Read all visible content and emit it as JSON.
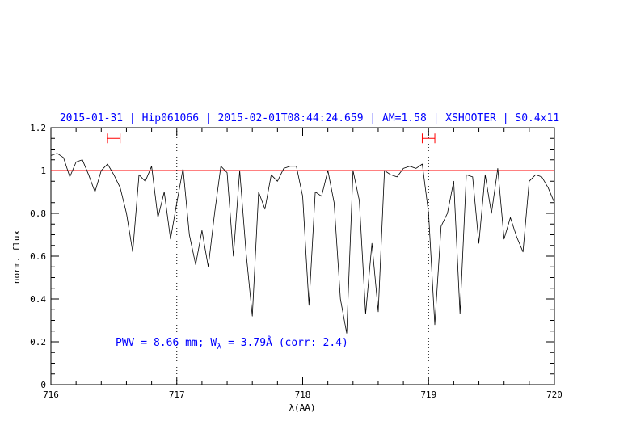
{
  "chart_data": {
    "type": "line",
    "title": "2015-01-31 | Hip061066 | 2015-02-01T08:44:24.659 | AM=1.58 | XSHOOTER | S0.4x11",
    "xlabel": "λ(AA)",
    "ylabel": "norm. flux",
    "xlim": [
      716,
      720
    ],
    "ylim": [
      0,
      1.2
    ],
    "x_ticks": [
      "716",
      "717",
      "718",
      "719",
      "720"
    ],
    "y_ticks": [
      "0",
      "0.2",
      "0.4",
      "0.6",
      "0.8",
      "1",
      "1.2"
    ],
    "annotation": {
      "prefix": "PWV = 8.66 mm; W",
      "subscript": "λ",
      "suffix": " = 3.79Å (corr: 2.4)"
    },
    "reference_line": {
      "y": 1.0,
      "color": "#ff0000"
    },
    "vertical_markers": [
      717.0,
      719.0
    ],
    "interval_markers": [
      {
        "x_start": 716.45,
        "x_end": 716.55,
        "y": 1.15
      },
      {
        "x_start": 718.95,
        "x_end": 719.05,
        "y": 1.15
      }
    ],
    "series": [
      {
        "color": "#000000",
        "x": [
          716.0,
          716.05,
          716.1,
          716.15,
          716.2,
          716.25,
          716.3,
          716.35,
          716.4,
          716.45,
          716.5,
          716.55,
          716.6,
          716.65,
          716.7,
          716.75,
          716.8,
          716.85,
          716.9,
          716.95,
          717.0,
          717.05,
          717.1,
          717.15,
          717.2,
          717.25,
          717.3,
          717.35,
          717.4,
          717.45,
          717.5,
          717.55,
          717.6,
          717.65,
          717.7,
          717.75,
          717.8,
          717.85,
          717.9,
          717.95,
          718.0,
          718.05,
          718.1,
          718.15,
          718.2,
          718.25,
          718.3,
          718.35,
          718.4,
          718.45,
          718.5,
          718.55,
          718.6,
          718.65,
          718.7,
          718.75,
          718.8,
          718.85,
          718.9,
          718.95,
          719.0,
          719.05,
          719.1,
          719.15,
          719.2,
          719.25,
          719.3,
          719.35,
          719.4,
          719.45,
          719.5,
          719.55,
          719.6,
          719.65,
          719.7,
          719.75,
          719.8,
          719.85,
          719.9,
          719.95,
          720.0
        ],
        "y": [
          1.07,
          1.08,
          1.06,
          0.97,
          1.04,
          1.05,
          0.98,
          0.9,
          1.0,
          1.03,
          0.98,
          0.92,
          0.8,
          0.62,
          0.98,
          0.95,
          1.02,
          0.78,
          0.9,
          0.68,
          0.85,
          1.01,
          0.7,
          0.56,
          0.72,
          0.55,
          0.8,
          1.02,
          0.99,
          0.6,
          1.0,
          0.62,
          0.32,
          0.9,
          0.82,
          0.98,
          0.95,
          1.01,
          1.02,
          1.02,
          0.88,
          0.37,
          0.9,
          0.88,
          1.0,
          0.85,
          0.4,
          0.24,
          1.0,
          0.86,
          0.33,
          0.66,
          0.34,
          1.0,
          0.98,
          0.97,
          1.01,
          1.02,
          1.01,
          1.03,
          0.8,
          0.28,
          0.74,
          0.8,
          0.95,
          0.33,
          0.98,
          0.97,
          0.66,
          0.98,
          0.8,
          1.01,
          0.68,
          0.78,
          0.69,
          0.62,
          0.95,
          0.98,
          0.97,
          0.92,
          0.85
        ]
      }
    ]
  }
}
